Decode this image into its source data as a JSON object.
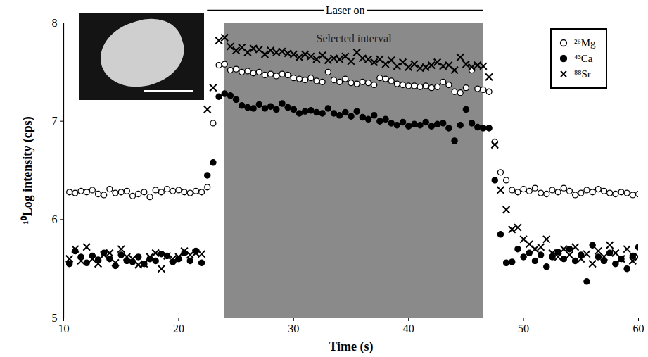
{
  "chart_data": {
    "type": "scatter",
    "xlabel": "Time (s)",
    "ylabel": "¹⁰Log intensity (cps)",
    "xlim": [
      10,
      60
    ],
    "xticks": [
      10,
      20,
      30,
      40,
      50,
      60
    ],
    "ylim": [
      5,
      8
    ],
    "yticks": [
      5,
      6,
      7,
      8
    ],
    "legend": "top-right",
    "annotations": [
      {
        "type": "line",
        "text": "Laser on",
        "x": [
          22.5,
          46.5
        ]
      },
      {
        "type": "band",
        "text": "Selected interval",
        "x": [
          24,
          46.5
        ]
      }
    ],
    "x": [
      10.5,
      11,
      11.5,
      12,
      12.5,
      13,
      13.5,
      14,
      14.5,
      15,
      15.5,
      16,
      16.5,
      17,
      17.5,
      18,
      18.5,
      19,
      19.5,
      20,
      20.5,
      21,
      21.5,
      22,
      22.5,
      23,
      23.5,
      24,
      24.5,
      25,
      25.5,
      26,
      26.5,
      27,
      27.5,
      28,
      28.5,
      29,
      29.5,
      30,
      30.5,
      31,
      31.5,
      32,
      32.5,
      33,
      33.5,
      34,
      34.5,
      35,
      35.5,
      36,
      36.5,
      37,
      37.5,
      38,
      38.5,
      39,
      39.5,
      40,
      40.5,
      41,
      41.5,
      42,
      42.5,
      43,
      43.5,
      44,
      44.5,
      45,
      45.5,
      46,
      46.5,
      47,
      47.5,
      48,
      48.5,
      49,
      49.5,
      50,
      50.5,
      51,
      51.5,
      52,
      52.5,
      53,
      53.5,
      54,
      54.5,
      55,
      55.5,
      56,
      56.5,
      57,
      57.5,
      58,
      58.5,
      59,
      59.5,
      60
    ],
    "series": [
      {
        "name": "²⁶Mg",
        "color": "#000000",
        "marker": "open circle",
        "values": [
          6.28,
          6.27,
          6.29,
          6.28,
          6.3,
          6.26,
          6.25,
          6.31,
          6.27,
          6.28,
          6.29,
          6.24,
          6.26,
          6.28,
          6.23,
          6.3,
          6.28,
          6.31,
          6.29,
          6.3,
          6.28,
          6.27,
          6.29,
          6.28,
          6.33,
          6.98,
          7.57,
          7.58,
          7.52,
          7.53,
          7.5,
          7.51,
          7.49,
          7.5,
          7.47,
          7.48,
          7.46,
          7.48,
          7.47,
          7.44,
          7.43,
          7.42,
          7.44,
          7.41,
          7.4,
          7.5,
          7.42,
          7.4,
          7.43,
          7.39,
          7.38,
          7.4,
          7.39,
          7.37,
          7.44,
          7.43,
          7.41,
          7.38,
          7.37,
          7.36,
          7.36,
          7.35,
          7.36,
          7.34,
          7.35,
          7.4,
          7.37,
          7.3,
          7.29,
          7.34,
          7.52,
          7.33,
          7.32,
          7.3,
          6.79,
          6.48,
          6.4,
          6.3,
          6.28,
          6.31,
          6.29,
          6.32,
          6.27,
          6.26,
          6.3,
          6.28,
          6.32,
          6.29,
          6.25,
          6.27,
          6.3,
          6.28,
          6.31,
          6.29,
          6.27,
          6.26,
          6.28,
          6.27,
          6.25,
          6.26
        ]
      },
      {
        "name": "⁴³Ca",
        "color": "#000000",
        "marker": "filled circle",
        "values": [
          5.55,
          5.68,
          5.62,
          5.56,
          5.63,
          5.59,
          5.66,
          5.6,
          5.53,
          5.64,
          5.58,
          5.57,
          5.62,
          5.55,
          5.6,
          5.58,
          5.65,
          5.63,
          5.57,
          5.6,
          5.66,
          5.58,
          5.68,
          5.56,
          6.45,
          6.58,
          7.25,
          7.28,
          7.26,
          7.22,
          7.16,
          7.14,
          7.13,
          7.17,
          7.13,
          7.15,
          7.12,
          7.18,
          7.14,
          7.12,
          7.08,
          7.1,
          7.11,
          7.09,
          7.08,
          7.13,
          7.08,
          7.06,
          7.09,
          7.05,
          7.1,
          7.04,
          7.02,
          7.06,
          7.0,
          7.02,
          6.98,
          6.96,
          6.99,
          6.95,
          6.97,
          6.96,
          6.99,
          6.95,
          6.97,
          6.98,
          6.93,
          6.8,
          6.96,
          7.12,
          6.98,
          6.94,
          6.93,
          6.93,
          6.4,
          5.85,
          5.56,
          5.57,
          5.7,
          5.62,
          5.66,
          5.58,
          5.64,
          5.52,
          5.62,
          5.67,
          5.6,
          5.7,
          5.58,
          5.64,
          5.37,
          5.74,
          5.62,
          5.58,
          5.66,
          5.55,
          5.6,
          5.5,
          5.63,
          5.72
        ]
      },
      {
        "name": "⁸⁸Sr",
        "color": "#000000",
        "marker": "x",
        "values": [
          5.6,
          5.7,
          5.58,
          5.72,
          5.6,
          5.55,
          5.64,
          5.66,
          5.56,
          5.7,
          5.62,
          5.6,
          5.54,
          5.55,
          5.62,
          5.66,
          5.5,
          5.63,
          5.6,
          5.62,
          5.68,
          5.64,
          5.66,
          5.65,
          7.12,
          7.34,
          7.82,
          7.85,
          7.76,
          7.72,
          7.75,
          7.7,
          7.74,
          7.73,
          7.68,
          7.72,
          7.7,
          7.71,
          7.69,
          7.68,
          7.65,
          7.68,
          7.66,
          7.63,
          7.67,
          7.62,
          7.64,
          7.63,
          7.66,
          7.61,
          7.7,
          7.64,
          7.63,
          7.6,
          7.63,
          7.58,
          7.62,
          7.56,
          7.6,
          7.55,
          7.58,
          7.54,
          7.55,
          7.57,
          7.6,
          7.56,
          7.57,
          7.52,
          7.65,
          7.58,
          7.55,
          7.57,
          7.56,
          7.45,
          6.76,
          6.3,
          6.1,
          5.9,
          5.92,
          5.8,
          5.75,
          5.7,
          5.72,
          5.8,
          5.66,
          5.62,
          5.7,
          5.64,
          5.72,
          5.6,
          5.65,
          5.55,
          5.68,
          5.62,
          5.74,
          5.66,
          5.6,
          5.7,
          5.58,
          5.62
        ]
      }
    ]
  }
}
